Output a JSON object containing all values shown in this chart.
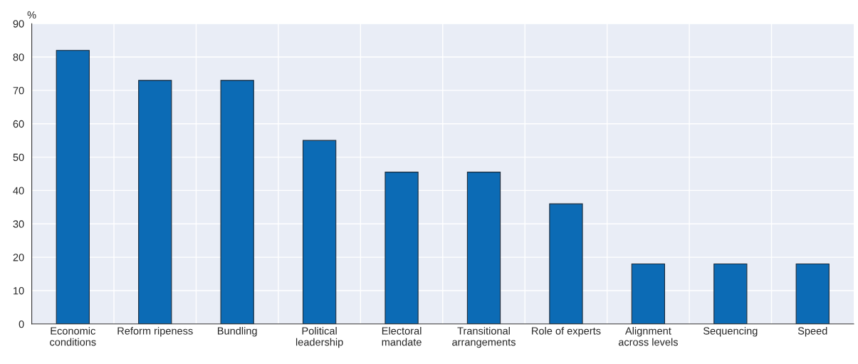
{
  "chart_data": {
    "type": "bar",
    "ylabel": "%",
    "categories": [
      "Economic conditions",
      "Reform ripeness",
      "Bundling",
      "Political leadership",
      "Electoral mandate",
      "Transitional arrangements",
      "Role of experts",
      "Alignment across levels",
      "Sequencing",
      "Speed"
    ],
    "values": [
      82,
      73,
      73,
      55,
      45.5,
      45.5,
      36,
      18,
      18,
      18
    ],
    "color": "#0c6bb5",
    "ylim": [
      0,
      90
    ],
    "yticks": [
      0,
      10,
      20,
      30,
      40,
      50,
      60,
      70,
      80,
      90
    ],
    "grid": true
  }
}
